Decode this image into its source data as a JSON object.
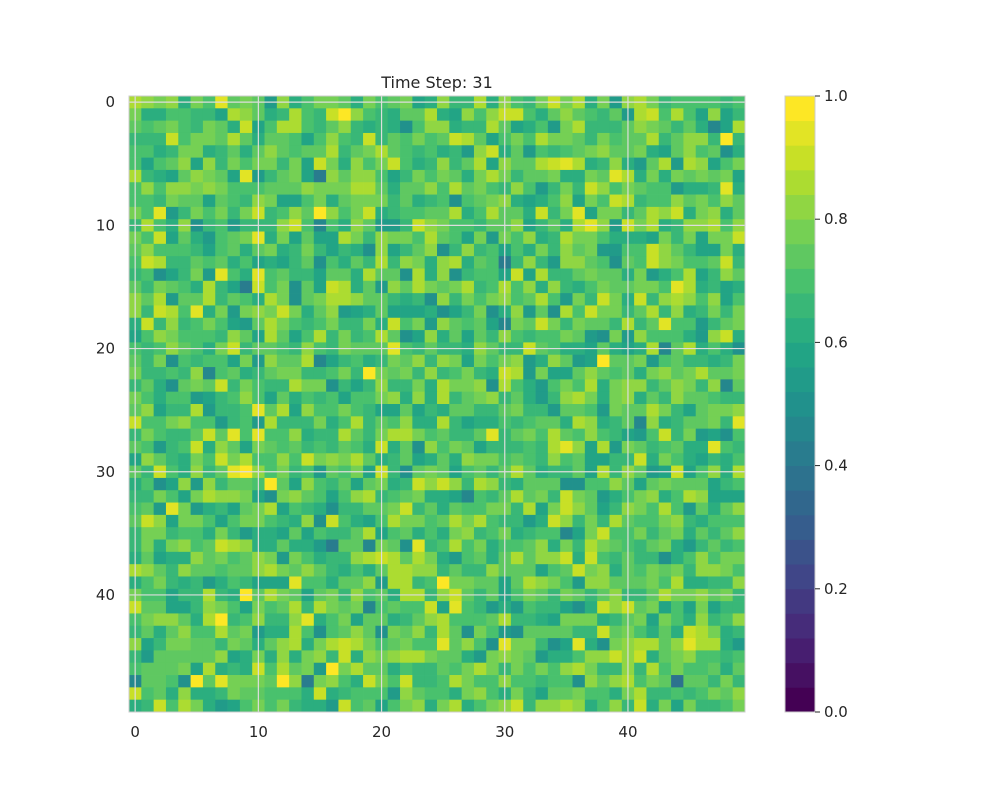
{
  "chart_data": {
    "type": "heatmap",
    "title": "Time Step: 31",
    "rows": 50,
    "cols": 50,
    "colormap": "viridis",
    "vmin": 0.0,
    "vmax": 1.0,
    "x_ticks": [
      0,
      10,
      20,
      30,
      40
    ],
    "y_ticks": [
      0,
      10,
      20,
      30,
      40
    ],
    "x_tick_labels": [
      "0",
      "10",
      "20",
      "30",
      "40"
    ],
    "y_tick_labels": [
      "0",
      "10",
      "20",
      "30",
      "40"
    ],
    "colorbar": {
      "ticks": [
        0.0,
        0.2,
        0.4,
        0.6,
        0.8,
        1.0
      ],
      "tick_labels": [
        "0.0",
        "0.2",
        "0.4",
        "0.6",
        "0.8",
        "1.0"
      ],
      "levels": 25
    },
    "grid": true,
    "value_mean": 0.72,
    "value_spread": 0.1,
    "value_range_observed": [
      0.35,
      1.0
    ]
  }
}
